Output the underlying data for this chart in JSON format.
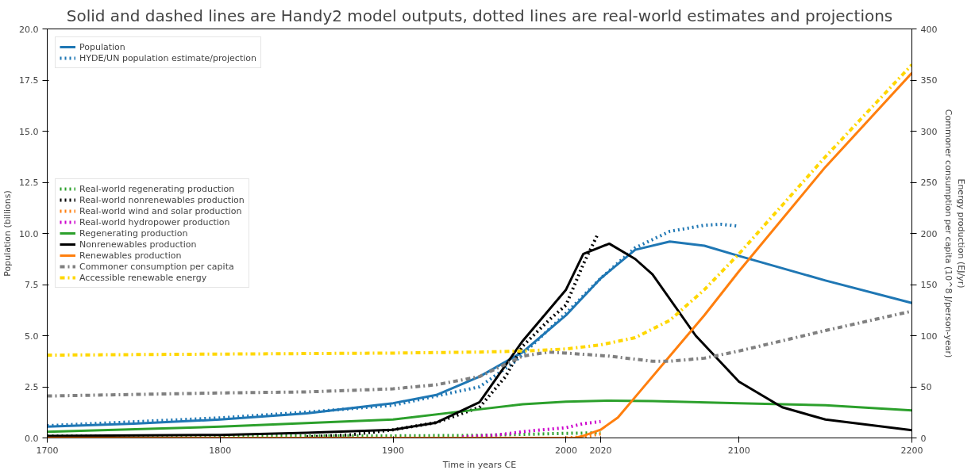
{
  "chart_data": {
    "type": "line",
    "title": "Solid and dashed lines are Handy2 model outputs, dotted lines are real-world estimates and projections",
    "xlabel": "Time in years CE",
    "ylabel": "Population (billions)",
    "y2label": "Energy production (EJ/yr)\nCommoner consumption per capita (10^8 J/person-year)",
    "xlim": [
      1700,
      2200
    ],
    "xticks": [
      1700,
      1800,
      1900,
      2000,
      2020,
      2100,
      2200
    ],
    "ylim": [
      0,
      20
    ],
    "yticks": [
      {
        "value": 0,
        "label": "0.0"
      },
      {
        "value": 2.5,
        "label": "2.5"
      },
      {
        "value": 5,
        "label": "5.0"
      },
      {
        "value": 7.5,
        "label": "7.5"
      },
      {
        "value": 10,
        "label": "10.0"
      },
      {
        "value": 12.5,
        "label": "12.5"
      },
      {
        "value": 15,
        "label": "15.0"
      },
      {
        "value": 17.5,
        "label": "17.5"
      },
      {
        "value": 20,
        "label": "20.0"
      }
    ],
    "y2lim": [
      0,
      400
    ],
    "y2ticks": [
      0,
      50,
      100,
      150,
      200,
      250,
      300,
      350,
      400
    ],
    "grid": false,
    "legend": "left",
    "series": [
      {
        "name": "Population",
        "color": "#1f77b4",
        "line_style": "solid",
        "x": [
          1700,
          1750,
          1800,
          1850,
          1900,
          1925,
          1950,
          1975,
          2000,
          2020,
          2040,
          2060,
          2080,
          2100,
          2150,
          2200
        ],
        "values": [
          0.55,
          0.7,
          0.9,
          1.2,
          1.7,
          2.1,
          3.0,
          4.2,
          6.0,
          7.8,
          9.2,
          9.6,
          9.4,
          8.9,
          7.7,
          6.6
        ]
      },
      {
        "name": "HYDE/UN population estimate/projection",
        "color": "#1f77b4",
        "line_style": "dotted",
        "x": [
          1700,
          1800,
          1850,
          1900,
          1950,
          1970,
          1990,
          2000,
          2020,
          2040,
          2060,
          2080,
          2090,
          2100
        ],
        "values": [
          0.6,
          0.98,
          1.26,
          1.6,
          2.5,
          3.7,
          5.3,
          6.1,
          7.8,
          9.3,
          10.1,
          10.4,
          10.45,
          10.35
        ]
      },
      {
        "name": "Real-world regenerating production",
        "color": "#2ca02c",
        "line_style": "dotted",
        "axis": "y2",
        "x": [
          1700,
          1800,
          1900,
          1950,
          2000,
          2020
        ],
        "values": [
          2,
          2,
          2,
          2.5,
          4.5,
          5
        ]
      },
      {
        "name": "Real-world nonrenewables production",
        "color": "#000000",
        "line_style": "dotted",
        "axis": "y2",
        "x": [
          1850,
          1875,
          1900,
          1925,
          1950,
          1965,
          1975,
          1990,
          2000,
          2010,
          2018
        ],
        "values": [
          1,
          3,
          8,
          15,
          30,
          60,
          90,
          115,
          130,
          170,
          198
        ]
      },
      {
        "name": "Real-world wind and solar production",
        "color": "#ff7f0e",
        "line_style": "dotted",
        "axis": "y2",
        "x": [
          2000,
          2010,
          2020
        ],
        "values": [
          0,
          1,
          4
        ]
      },
      {
        "name": "Real-world hydropower production",
        "color": "#cc00cc",
        "line_style": "dotted",
        "axis": "y2",
        "x": [
          1940,
          1960,
          1980,
          2000,
          2010,
          2020
        ],
        "values": [
          1,
          3,
          7,
          10,
          14,
          16
        ]
      },
      {
        "name": "Regenerating production",
        "color": "#2ca02c",
        "line_style": "solid",
        "axis": "y2",
        "x": [
          1700,
          1800,
          1900,
          1950,
          1975,
          2000,
          2025,
          2050,
          2100,
          2150,
          2200
        ],
        "values": [
          6,
          11,
          18,
          28,
          33,
          35.5,
          36.5,
          36,
          34,
          32,
          27
        ]
      },
      {
        "name": "Nonrenewables production",
        "color": "#000000",
        "line_style": "solid",
        "axis": "y2",
        "x": [
          1700,
          1800,
          1850,
          1900,
          1925,
          1950,
          1975,
          2000,
          2010,
          2025,
          2040,
          2050,
          2075,
          2100,
          2125,
          2150,
          2200
        ],
        "values": [
          2,
          3,
          5,
          8,
          15,
          35,
          95,
          145,
          180,
          190,
          175,
          160,
          100,
          55,
          30,
          18,
          7.5
        ]
      },
      {
        "name": "Renewables production",
        "color": "#ff7f0e",
        "line_style": "solid",
        "axis": "y2",
        "x": [
          1700,
          2005,
          2010,
          2020,
          2030,
          2040,
          2060,
          2080,
          2100,
          2150,
          2200
        ],
        "values": [
          0,
          0,
          2,
          8,
          20,
          40,
          80,
          120,
          163,
          265,
          357
        ]
      },
      {
        "name": "Commoner consumption per capita",
        "color": "#808080",
        "line_style": "dashed",
        "axis": "y2",
        "x": [
          1700,
          1800,
          1850,
          1900,
          1925,
          1950,
          1975,
          1990,
          2000,
          2025,
          2050,
          2060,
          2080,
          2100,
          2150,
          2200
        ],
        "values": [
          41,
          44,
          45,
          48,
          52,
          60,
          80,
          84,
          83,
          80,
          75,
          75,
          78,
          85,
          105,
          124
        ]
      },
      {
        "name": "Accessible renewable energy",
        "color": "#ffd700",
        "line_style": "dashed",
        "axis": "y2",
        "x": [
          1700,
          1800,
          1900,
          1950,
          1975,
          2000,
          2020,
          2040,
          2060,
          2080,
          2100,
          2150,
          2200
        ],
        "values": [
          81,
          82,
          83,
          84,
          85,
          87,
          91,
          98,
          115,
          145,
          180,
          275,
          365
        ]
      }
    ]
  }
}
